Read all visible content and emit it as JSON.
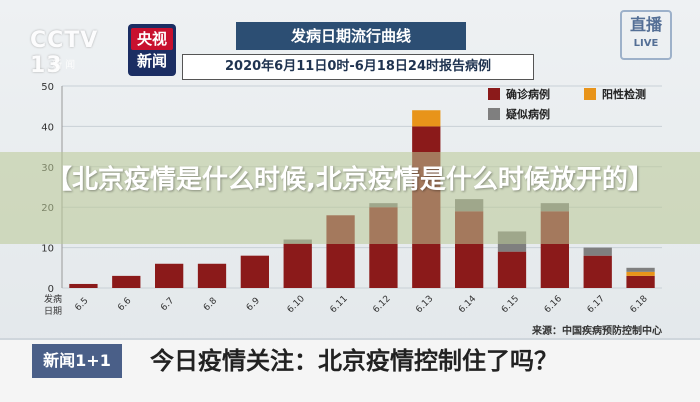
{
  "header": {
    "cctv_logo": "CCTV 13",
    "cctv_sub": "新 闻",
    "yangshi_top": "央视",
    "yangshi_bottom": "新闻",
    "live_top": "直播",
    "live_bottom": "LIVE"
  },
  "banner": {
    "text": "【北京疫情是什么时候,北京疫情是什么时候放开的】"
  },
  "ticker": {
    "logo": "新闻1+1",
    "text": "今日疫情关注：北京疫情控制住了吗？"
  },
  "colors": {
    "confirmed": "#8b1a1a",
    "positive": "#e8941a",
    "suspected": "#7f7f7f"
  },
  "chart_data": {
    "type": "bar",
    "stacked": true,
    "title": "发病日期流行曲线",
    "subtitle": "2020年6月11日0时-6月18日24时报告病例",
    "xlabel": "发病日期",
    "ylabel": "",
    "ylim": [
      0,
      50
    ],
    "yticks": [
      0,
      10,
      20,
      30,
      40,
      50
    ],
    "grid": true,
    "legend_position": "top-right",
    "source": "来源：中国疾病预防控制中心",
    "categories": [
      "6.5",
      "6.6",
      "6.7",
      "6.8",
      "6.9",
      "6.10",
      "6.11",
      "6.12",
      "6.13",
      "6.14",
      "6.15",
      "6.16",
      "6.17",
      "6.18"
    ],
    "series": [
      {
        "name": "确诊病例",
        "values": [
          1,
          3,
          6,
          6,
          8,
          11,
          18,
          20,
          40,
          19,
          9,
          19,
          8,
          3
        ]
      },
      {
        "name": "阳性检测",
        "values": [
          0,
          0,
          0,
          0,
          0,
          0,
          0,
          0,
          4,
          0,
          0,
          0,
          0,
          1
        ]
      },
      {
        "name": "疑似病例",
        "values": [
          0,
          0,
          0,
          0,
          0,
          1,
          0,
          1,
          0,
          3,
          5,
          2,
          2,
          1
        ]
      }
    ]
  }
}
